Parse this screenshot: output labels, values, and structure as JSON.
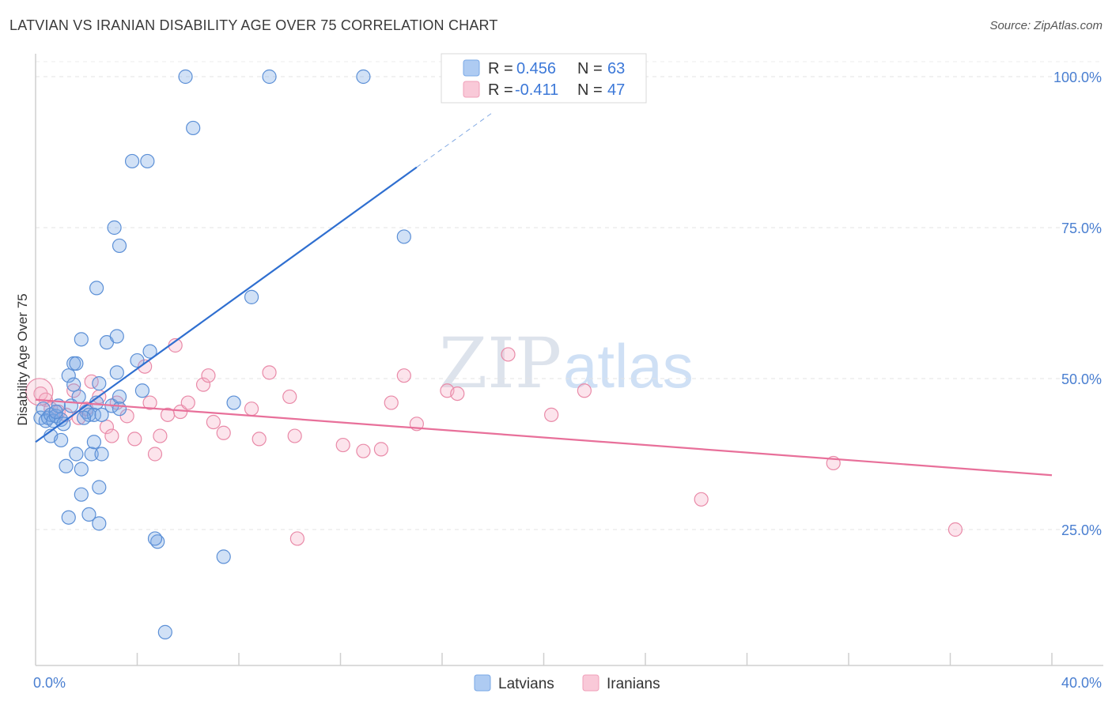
{
  "title": "LATVIAN VS IRANIAN DISABILITY AGE OVER 75 CORRELATION CHART",
  "source": "Source: ZipAtlas.com",
  "watermark": "ZIPatlas",
  "chart_data": {
    "type": "scatter",
    "ylabel": "Disability Age Over 75",
    "xlim": [
      0,
      40
    ],
    "ylim": [
      0,
      102
    ],
    "x_tick_labels": [
      "0.0%",
      "40.0%"
    ],
    "y_ticks": [
      {
        "value": 100,
        "label": "100.0%"
      },
      {
        "value": 75,
        "label": "75.0%"
      },
      {
        "value": 50,
        "label": "50.0%"
      },
      {
        "value": 25,
        "label": "25.0%"
      }
    ],
    "grid": true,
    "legend_position": "top-center",
    "stats": [
      {
        "r_label": "R =",
        "r_value": "0.456",
        "n_label": "N =",
        "n_value": "63"
      },
      {
        "r_label": "R =",
        "r_value": "-0.411",
        "n_label": "N =",
        "n_value": "47"
      }
    ],
    "series": [
      {
        "name": "Latvians",
        "color": "#7aa8e6",
        "edge": "#5b8fd6",
        "trend": {
          "x0": 0.0,
          "y0": 39.5,
          "x1": 15.0,
          "y1": 85.0,
          "dash_to_x": 18.0
        },
        "trend_color": "#2f6fd0",
        "points": [
          [
            0.2,
            43.5
          ],
          [
            0.3,
            45.0
          ],
          [
            0.4,
            43.0
          ],
          [
            0.5,
            43.5
          ],
          [
            0.6,
            44.0
          ],
          [
            0.7,
            43.0
          ],
          [
            0.8,
            43.8
          ],
          [
            0.9,
            45.5
          ],
          [
            1.0,
            43.2
          ],
          [
            1.1,
            42.5
          ],
          [
            0.6,
            40.5
          ],
          [
            1.0,
            39.8
          ],
          [
            1.2,
            35.5
          ],
          [
            1.6,
            37.5
          ],
          [
            1.8,
            35.0
          ],
          [
            1.3,
            27.0
          ],
          [
            2.1,
            27.5
          ],
          [
            1.8,
            30.8
          ],
          [
            2.2,
            37.5
          ],
          [
            2.5,
            26.0
          ],
          [
            2.3,
            39.5
          ],
          [
            2.6,
            37.5
          ],
          [
            2.5,
            32.0
          ],
          [
            1.3,
            50.5
          ],
          [
            1.5,
            49.0
          ],
          [
            1.5,
            52.5
          ],
          [
            1.6,
            52.5
          ],
          [
            1.7,
            47.0
          ],
          [
            2.0,
            44.5
          ],
          [
            2.1,
            44.0
          ],
          [
            2.3,
            44.0
          ],
          [
            2.4,
            46.0
          ],
          [
            2.5,
            49.2
          ],
          [
            1.8,
            56.5
          ],
          [
            2.8,
            56.0
          ],
          [
            3.0,
            45.5
          ],
          [
            3.2,
            51.0
          ],
          [
            3.3,
            47.0
          ],
          [
            3.2,
            57.0
          ],
          [
            3.3,
            45.0
          ],
          [
            4.0,
            53.0
          ],
          [
            4.2,
            48.0
          ],
          [
            4.5,
            54.5
          ],
          [
            2.4,
            65.0
          ],
          [
            3.1,
            75.0
          ],
          [
            3.3,
            72.0
          ],
          [
            3.8,
            86.0
          ],
          [
            4.4,
            86.0
          ],
          [
            5.9,
            100.0
          ],
          [
            6.2,
            91.5
          ],
          [
            9.2,
            100.0
          ],
          [
            12.9,
            100.0
          ],
          [
            8.5,
            63.5
          ],
          [
            14.5,
            73.5
          ],
          [
            7.8,
            46.0
          ],
          [
            4.8,
            23.0
          ],
          [
            4.7,
            23.5
          ],
          [
            7.4,
            20.5
          ],
          [
            5.1,
            8.0
          ],
          [
            1.9,
            43.5
          ],
          [
            2.6,
            44.0
          ],
          [
            0.8,
            44.5
          ],
          [
            1.4,
            45.5
          ]
        ]
      },
      {
        "name": "Iranians",
        "color": "#f5b3c8",
        "edge": "#e98aa8",
        "trend": {
          "x0": 0.0,
          "y0": 46.5,
          "x1": 40.0,
          "y1": 34.0
        },
        "trend_color": "#e8709a",
        "points": [
          [
            0.2,
            47.5
          ],
          [
            0.4,
            46.5
          ],
          [
            0.6,
            45.0
          ],
          [
            0.9,
            44.5
          ],
          [
            1.2,
            44.0
          ],
          [
            1.5,
            48.0
          ],
          [
            1.7,
            43.5
          ],
          [
            2.0,
            45.0
          ],
          [
            2.2,
            49.5
          ],
          [
            2.5,
            47.0
          ],
          [
            2.8,
            42.0
          ],
          [
            3.0,
            40.5
          ],
          [
            3.2,
            46.0
          ],
          [
            3.6,
            43.8
          ],
          [
            3.9,
            40.0
          ],
          [
            4.3,
            52.0
          ],
          [
            4.5,
            46.0
          ],
          [
            4.7,
            37.5
          ],
          [
            4.9,
            40.5
          ],
          [
            5.2,
            44.0
          ],
          [
            5.5,
            55.5
          ],
          [
            5.7,
            44.5
          ],
          [
            6.0,
            46.0
          ],
          [
            6.6,
            49.0
          ],
          [
            6.8,
            50.5
          ],
          [
            7.0,
            42.8
          ],
          [
            7.4,
            41.0
          ],
          [
            8.5,
            45.0
          ],
          [
            8.8,
            40.0
          ],
          [
            9.2,
            51.0
          ],
          [
            10.0,
            47.0
          ],
          [
            10.2,
            40.5
          ],
          [
            10.3,
            23.5
          ],
          [
            12.1,
            39.0
          ],
          [
            12.9,
            38.0
          ],
          [
            13.6,
            38.3
          ],
          [
            14.0,
            46.0
          ],
          [
            14.5,
            50.5
          ],
          [
            15.0,
            42.5
          ],
          [
            16.2,
            48.0
          ],
          [
            16.6,
            47.5
          ],
          [
            18.6,
            54.0
          ],
          [
            20.3,
            44.0
          ],
          [
            21.6,
            48.0
          ],
          [
            26.2,
            30.0
          ],
          [
            31.4,
            36.0
          ],
          [
            36.2,
            25.0
          ]
        ]
      }
    ]
  }
}
